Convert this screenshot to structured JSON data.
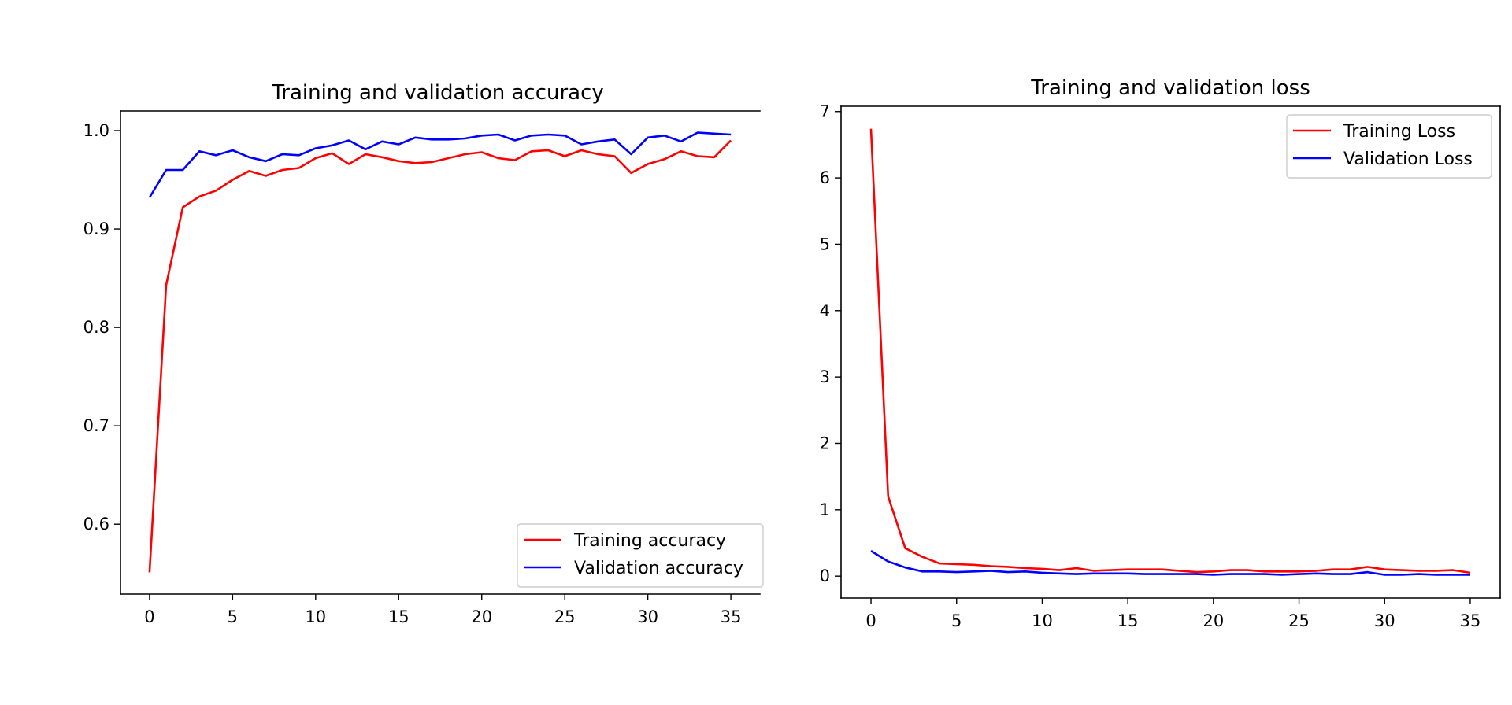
{
  "chart_data": [
    {
      "type": "line",
      "title": "Training and validation accuracy",
      "xlabel": "",
      "ylabel": "",
      "xlim": [
        -1.75,
        36.75
      ],
      "ylim": [
        0.529,
        1.02
      ],
      "xticks": [
        0,
        5,
        10,
        15,
        20,
        25,
        30,
        35
      ],
      "yticks": [
        0.6,
        0.7,
        0.8,
        0.9,
        1.0
      ],
      "ytick_labels": [
        "0.6",
        "0.7",
        "0.8",
        "0.9",
        "1.0"
      ],
      "grid": false,
      "legend_position": "lower-right",
      "x": [
        0,
        1,
        2,
        3,
        4,
        5,
        6,
        7,
        8,
        9,
        10,
        11,
        12,
        13,
        14,
        15,
        16,
        17,
        18,
        19,
        20,
        21,
        22,
        23,
        24,
        25,
        26,
        27,
        28,
        29,
        30,
        31,
        32,
        33,
        34,
        35
      ],
      "series": [
        {
          "name": "Training accuracy",
          "color": "#ff0000",
          "values": [
            0.551,
            0.843,
            0.922,
            0.933,
            0.939,
            0.95,
            0.959,
            0.954,
            0.96,
            0.962,
            0.972,
            0.977,
            0.966,
            0.976,
            0.973,
            0.969,
            0.967,
            0.968,
            0.972,
            0.976,
            0.978,
            0.972,
            0.97,
            0.979,
            0.98,
            0.974,
            0.98,
            0.976,
            0.974,
            0.957,
            0.966,
            0.971,
            0.979,
            0.974,
            0.973,
            0.99
          ]
        },
        {
          "name": "Validation accuracy",
          "color": "#0000ff",
          "values": [
            0.932,
            0.96,
            0.96,
            0.979,
            0.975,
            0.98,
            0.973,
            0.969,
            0.976,
            0.975,
            0.982,
            0.985,
            0.99,
            0.981,
            0.989,
            0.986,
            0.993,
            0.991,
            0.991,
            0.992,
            0.995,
            0.996,
            0.99,
            0.995,
            0.996,
            0.995,
            0.986,
            0.989,
            0.991,
            0.976,
            0.993,
            0.995,
            0.989,
            0.998,
            0.997,
            0.996
          ]
        }
      ]
    },
    {
      "type": "line",
      "title": "Training and validation loss",
      "xlabel": "",
      "ylabel": "",
      "xlim": [
        -1.75,
        36.75
      ],
      "ylim": [
        -0.33,
        7.08
      ],
      "xticks": [
        0,
        5,
        10,
        15,
        20,
        25,
        30,
        35
      ],
      "yticks": [
        0,
        1,
        2,
        3,
        4,
        5,
        6,
        7
      ],
      "ytick_labels": [
        "0",
        "1",
        "2",
        "3",
        "4",
        "5",
        "6",
        "7"
      ],
      "grid": false,
      "legend_position": "upper-right",
      "x": [
        0,
        1,
        2,
        3,
        4,
        5,
        6,
        7,
        8,
        9,
        10,
        11,
        12,
        13,
        14,
        15,
        16,
        17,
        18,
        19,
        20,
        21,
        22,
        23,
        24,
        25,
        26,
        27,
        28,
        29,
        30,
        31,
        32,
        33,
        34,
        35
      ],
      "series": [
        {
          "name": "Training Loss",
          "color": "#ff0000",
          "values": [
            6.74,
            1.2,
            0.42,
            0.29,
            0.19,
            0.18,
            0.17,
            0.15,
            0.14,
            0.12,
            0.11,
            0.09,
            0.12,
            0.08,
            0.09,
            0.1,
            0.1,
            0.1,
            0.08,
            0.06,
            0.07,
            0.09,
            0.09,
            0.07,
            0.07,
            0.07,
            0.08,
            0.1,
            0.1,
            0.14,
            0.1,
            0.09,
            0.08,
            0.08,
            0.09,
            0.05
          ]
        },
        {
          "name": "Validation Loss",
          "color": "#0000ff",
          "values": [
            0.38,
            0.22,
            0.13,
            0.07,
            0.07,
            0.06,
            0.07,
            0.08,
            0.06,
            0.07,
            0.05,
            0.04,
            0.03,
            0.04,
            0.04,
            0.04,
            0.03,
            0.03,
            0.03,
            0.03,
            0.02,
            0.03,
            0.03,
            0.03,
            0.02,
            0.03,
            0.04,
            0.03,
            0.03,
            0.06,
            0.02,
            0.02,
            0.03,
            0.02,
            0.02,
            0.02
          ]
        }
      ]
    }
  ]
}
